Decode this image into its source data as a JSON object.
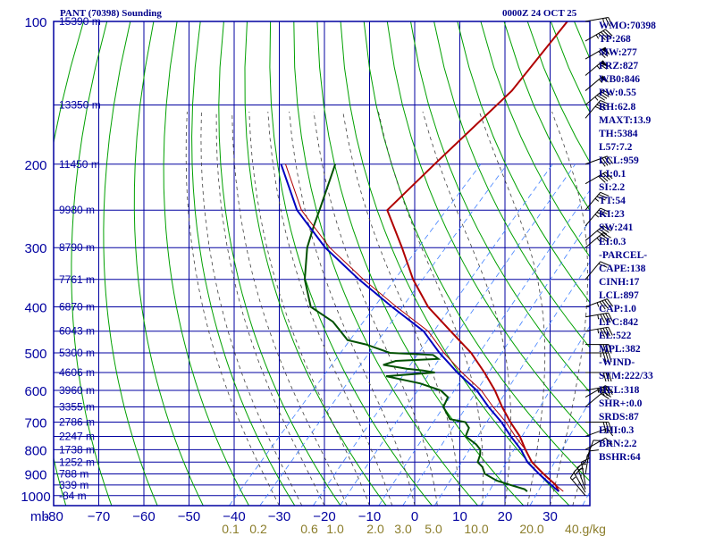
{
  "title": "PANT (70398) Sounding",
  "datetime": "0000Z 24 OCT 25",
  "colors": {
    "grid": "#0000a0",
    "dry_adiabat": "#00a000",
    "moist_adiabat": "#404040",
    "mixing_ratio": "#4080ff",
    "temperature": "#b00000",
    "dewpoint": "#005000",
    "parcel": "#0000c0",
    "side_text": "#00008b"
  },
  "chart_data": {
    "type": "line",
    "title": "PANT (70398) Sounding",
    "pressure_unit_label": "mb",
    "pressure_levels": [
      100,
      200,
      300,
      400,
      500,
      600,
      700,
      800,
      900,
      1000
    ],
    "temperature_ticks": [
      -80,
      -70,
      -60,
      -50,
      -40,
      -30,
      -20,
      -10,
      0,
      10,
      20,
      30,
      40
    ],
    "temperature_tick_labels": [
      "-80",
      "−70",
      "−60",
      "−50",
      "−40",
      "−30",
      "−20",
      "−10",
      "0",
      "10",
      "20",
      "30",
      "40"
    ],
    "height_labels": [
      {
        "p": 100,
        "label": "15390 m"
      },
      {
        "p": 150,
        "label": "13350 m"
      },
      {
        "p": 200,
        "label": "11450 m"
      },
      {
        "p": 250,
        "label": "9980 m"
      },
      {
        "p": 300,
        "label": "8790 m"
      },
      {
        "p": 350,
        "label": "7761 m"
      },
      {
        "p": 400,
        "label": "6870 m"
      },
      {
        "p": 450,
        "label": "6043 m"
      },
      {
        "p": 500,
        "label": "5300 m"
      },
      {
        "p": 550,
        "label": "4606 m"
      },
      {
        "p": 600,
        "label": "3960 m"
      },
      {
        "p": 650,
        "label": "3355 m"
      },
      {
        "p": 700,
        "label": "2786 m"
      },
      {
        "p": 750,
        "label": "2247 m"
      },
      {
        "p": 800,
        "label": "1738 m"
      },
      {
        "p": 850,
        "label": "1252 m"
      },
      {
        "p": 900,
        "label": "788 m"
      },
      {
        "p": 950,
        "label": "339 m"
      },
      {
        "p": 1000,
        "label": "-84 m"
      }
    ],
    "mixing_ratio_labels": [
      "0.1",
      "0.2",
      "0.6",
      "1.0",
      "2.0",
      "3.0",
      "5.0",
      "10.0",
      "20.0",
      "40.g/kg"
    ],
    "series": [
      {
        "key": "temperature",
        "points": [
          [
            100,
            -66
          ],
          [
            140,
            -64
          ],
          [
            200,
            -66
          ],
          [
            250,
            -67
          ],
          [
            300,
            -56
          ],
          [
            350,
            -47
          ],
          [
            400,
            -38
          ],
          [
            450,
            -28
          ],
          [
            500,
            -19
          ],
          [
            550,
            -12
          ],
          [
            600,
            -6
          ],
          [
            650,
            -1
          ],
          [
            700,
            4
          ],
          [
            750,
            9
          ],
          [
            800,
            13
          ],
          [
            850,
            17
          ],
          [
            900,
            22
          ],
          [
            950,
            27
          ],
          [
            980,
            29
          ]
        ]
      },
      {
        "key": "dewpoint",
        "points": [
          [
            200,
            -88
          ],
          [
            250,
            -82
          ],
          [
            270,
            -80
          ],
          [
            300,
            -77
          ],
          [
            350,
            -71
          ],
          [
            400,
            -64
          ],
          [
            430,
            -56
          ],
          [
            470,
            -49
          ],
          [
            480,
            -44
          ],
          [
            500,
            -37
          ],
          [
            505,
            -27
          ],
          [
            515,
            -25
          ],
          [
            520,
            -34
          ],
          [
            530,
            -36
          ],
          [
            540,
            -30
          ],
          [
            545,
            -26
          ],
          [
            550,
            -23
          ],
          [
            560,
            -33
          ],
          [
            580,
            -24
          ],
          [
            600,
            -18
          ],
          [
            620,
            -15
          ],
          [
            650,
            -14
          ],
          [
            670,
            -12
          ],
          [
            690,
            -10
          ],
          [
            700,
            -6
          ],
          [
            720,
            -4
          ],
          [
            750,
            -3
          ],
          [
            780,
            1
          ],
          [
            800,
            3
          ],
          [
            820,
            4
          ],
          [
            850,
            5
          ],
          [
            870,
            7
          ],
          [
            900,
            9
          ],
          [
            930,
            13
          ],
          [
            950,
            17
          ],
          [
            970,
            21
          ],
          [
            980,
            22
          ]
        ]
      },
      {
        "key": "parcel",
        "points": [
          [
            980,
            29
          ],
          [
            950,
            26
          ],
          [
            900,
            21
          ],
          [
            850,
            16
          ],
          [
            800,
            12
          ],
          [
            750,
            7
          ],
          [
            700,
            2
          ],
          [
            650,
            -4
          ],
          [
            600,
            -10
          ],
          [
            550,
            -18
          ],
          [
            500,
            -26
          ],
          [
            450,
            -34
          ],
          [
            400,
            -46
          ],
          [
            350,
            -59
          ],
          [
            300,
            -73
          ],
          [
            250,
            -87
          ],
          [
            200,
            -100
          ]
        ]
      },
      {
        "key": "parcel_virtual",
        "points": [
          [
            980,
            30
          ],
          [
            950,
            27
          ],
          [
            900,
            22
          ],
          [
            850,
            17
          ],
          [
            800,
            13
          ],
          [
            750,
            8
          ],
          [
            700,
            3
          ],
          [
            650,
            -3
          ],
          [
            600,
            -9
          ],
          [
            550,
            -17
          ],
          [
            500,
            -25
          ],
          [
            450,
            -33
          ],
          [
            400,
            -45
          ],
          [
            350,
            -58
          ],
          [
            300,
            -72
          ],
          [
            250,
            -86
          ],
          [
            200,
            -99
          ]
        ]
      }
    ],
    "wind_barbs": [
      {
        "p": 100,
        "dir": 80,
        "spd": 25
      },
      {
        "p": 110,
        "dir": 60,
        "spd": 45
      },
      {
        "p": 120,
        "dir": 60,
        "spd": 70
      },
      {
        "p": 130,
        "dir": 50,
        "spd": 65
      },
      {
        "p": 140,
        "dir": 50,
        "spd": 55
      },
      {
        "p": 150,
        "dir": 50,
        "spd": 45
      },
      {
        "p": 160,
        "dir": 40,
        "spd": 40
      },
      {
        "p": 200,
        "dir": 70,
        "spd": 40
      },
      {
        "p": 220,
        "dir": 60,
        "spd": 40
      },
      {
        "p": 250,
        "dir": 40,
        "spd": 35
      },
      {
        "p": 270,
        "dir": 40,
        "spd": 35
      },
      {
        "p": 290,
        "dir": 50,
        "spd": 40
      },
      {
        "p": 300,
        "dir": 50,
        "spd": 35
      },
      {
        "p": 350,
        "dir": 40,
        "spd": 20
      },
      {
        "p": 400,
        "dir": 70,
        "spd": 45
      },
      {
        "p": 420,
        "dir": 80,
        "spd": 45
      },
      {
        "p": 450,
        "dir": 80,
        "spd": 45
      },
      {
        "p": 480,
        "dir": 90,
        "spd": 40
      },
      {
        "p": 500,
        "dir": 90,
        "spd": 35
      },
      {
        "p": 550,
        "dir": 90,
        "spd": 30
      },
      {
        "p": 600,
        "dir": 80,
        "spd": 45
      },
      {
        "p": 620,
        "dir": 60,
        "spd": 35
      },
      {
        "p": 650,
        "dir": 50,
        "spd": 20
      },
      {
        "p": 700,
        "dir": 90,
        "spd": 30
      },
      {
        "p": 750,
        "dir": 70,
        "spd": 15
      },
      {
        "p": 800,
        "dir": 60,
        "spd": 10
      },
      {
        "p": 850,
        "dir": 20,
        "spd": 10
      },
      {
        "p": 900,
        "dir": 10,
        "spd": 10
      },
      {
        "p": 950,
        "dir": 350,
        "spd": 15
      },
      {
        "p": 970,
        "dir": 340,
        "spd": 15
      },
      {
        "p": 985,
        "dir": 330,
        "spd": 20
      },
      {
        "p": 1000,
        "dir": 320,
        "spd": 15
      }
    ]
  },
  "indices": [
    "WMO:70398",
    "TP:268",
    "MW:277",
    "FRZ:827",
    "WB0:846",
    "PW:0.55",
    "RH:62.8",
    "MAXT:13.9",
    "TH:5384",
    "L57:7.2",
    "LCL:959",
    "LI:0.1",
    "SI:2.2",
    "TT:54",
    "KI:23",
    "SW:241",
    "EI:0.3",
    "-PARCEL-",
    "CAPE:138",
    "CINH:17",
    "LCL:897",
    "CAP:1.0",
    "LFC:842",
    "EL:522",
    "MPL:382",
    "-WIND-",
    "STM:222/33",
    "HEL:318",
    "SHR+:0.0",
    "SRDS:87",
    "EHI:0.3",
    "BRN:2.2",
    "BSHR:64"
  ]
}
